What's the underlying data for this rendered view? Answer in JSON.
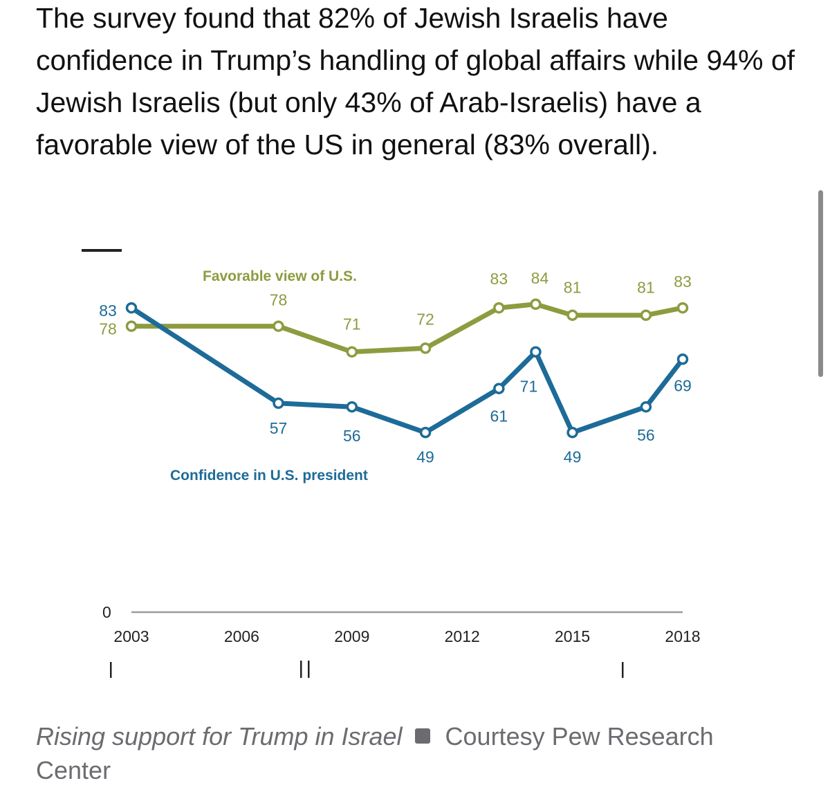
{
  "article": {
    "text": "The survey found that 82% of Jewish Israelis have confidence in Trump’s handling of global affairs while 94% of Jewish Israelis (but only 43% of Arab-Israelis) have a favorable view of the US in general (83% overall)."
  },
  "caption": {
    "title": "Rising support for Trump in Israel",
    "credit": "Courtesy Pew Research Center"
  },
  "colors": {
    "favorable": "#8e9b3f",
    "confidence": "#1d6b98",
    "axis": "#9a9a9a"
  },
  "chart_data": {
    "type": "line",
    "xlabel": "",
    "ylabel": "",
    "ylim": [
      0,
      100
    ],
    "xlim": [
      2003,
      2018
    ],
    "y_ticks": [
      "0"
    ],
    "x_ticks": [
      "2003",
      "2006",
      "2009",
      "2012",
      "2015",
      "2018"
    ],
    "grid": false,
    "series": [
      {
        "name": "Favorable view of U.S.",
        "x": [
          2003,
          2007,
          2009,
          2011,
          2013,
          2014,
          2015,
          2017,
          2018
        ],
        "values": [
          78,
          78,
          71,
          72,
          83,
          84,
          81,
          81,
          83
        ]
      },
      {
        "name": "Confidence in U.S. president",
        "x": [
          2003,
          2007,
          2009,
          2011,
          2013,
          2014,
          2015,
          2017,
          2018
        ],
        "values": [
          83,
          57,
          56,
          49,
          61,
          71,
          49,
          56,
          69
        ]
      }
    ]
  }
}
